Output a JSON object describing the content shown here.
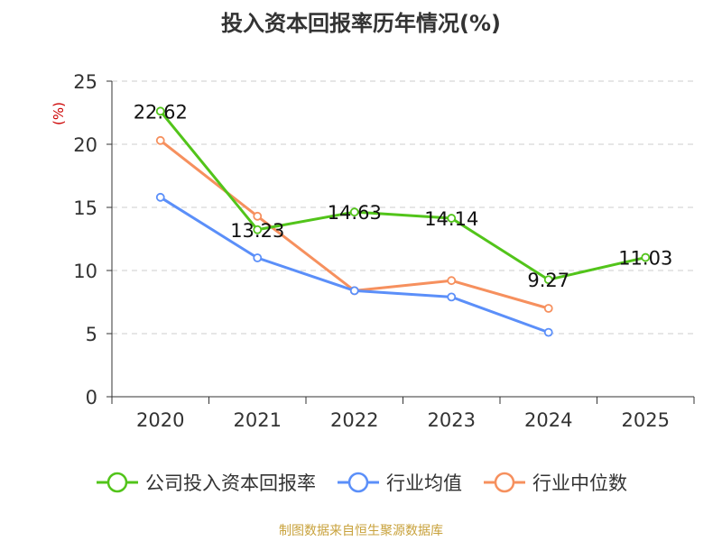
{
  "chart_data": {
    "type": "line",
    "title": "投入资本回报率历年情况(%)",
    "ylabel": "(%)",
    "xlabel": "",
    "categories": [
      "2020",
      "2021",
      "2022",
      "2023",
      "2024",
      "2025"
    ],
    "ylim": [
      0,
      25
    ],
    "yticks": [
      0,
      5,
      10,
      15,
      20,
      25
    ],
    "grid": true,
    "legend_position": "bottom",
    "series": [
      {
        "name": "公司投入资本回报率",
        "color": "#52c41a",
        "values": [
          22.62,
          13.23,
          14.63,
          14.14,
          9.27,
          11.03
        ],
        "labels": [
          "22.62",
          "13.23",
          "14.63",
          "14.14",
          "9.27",
          "11.03"
        ]
      },
      {
        "name": "行业均值",
        "color": "#5b8ff9",
        "values": [
          15.8,
          11.0,
          8.4,
          7.9,
          5.1,
          null
        ]
      },
      {
        "name": "行业中位数",
        "color": "#f6905e",
        "values": [
          20.3,
          14.3,
          8.4,
          9.2,
          7.0,
          null
        ]
      }
    ]
  },
  "footer": {
    "source": "制图数据来自恒生聚源数据库"
  }
}
